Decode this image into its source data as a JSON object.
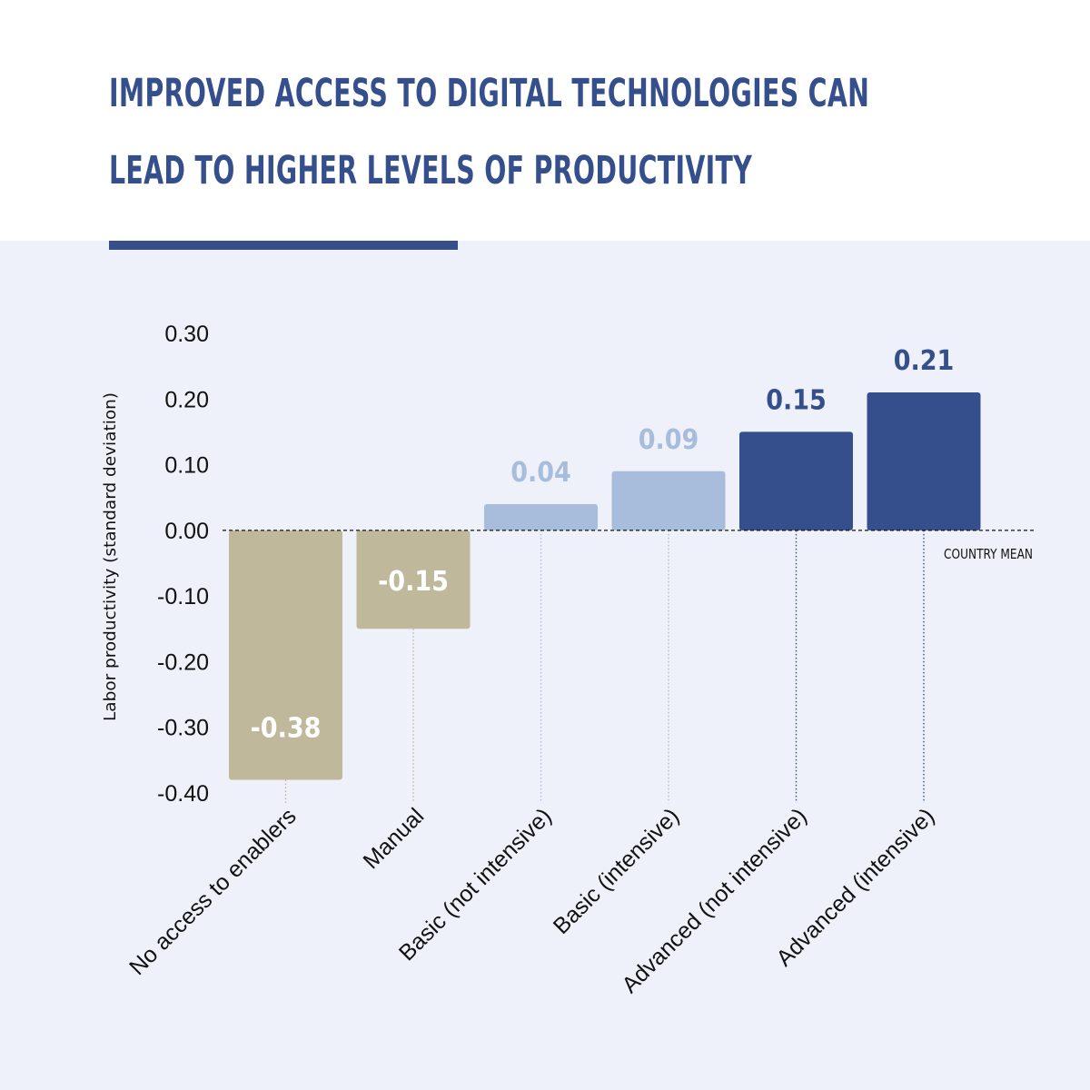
{
  "header": {
    "title_line1": "IMPROVED ACCESS TO DIGITAL TECHNOLOGIES CAN",
    "title_line2": "LEAD TO HIGHER LEVELS OF PRODUCTIVITY"
  },
  "colors": {
    "title": "#354e8c",
    "negative": "#bfb89b",
    "basic": "#a8bddb",
    "advanced": "#354e8c",
    "background": "#eef1fa"
  },
  "chart_data": {
    "type": "bar",
    "ylabel": "Labor productivity (standard deviation)",
    "ylim": [
      -0.4,
      0.3
    ],
    "yticks": [
      "0.30",
      "0.20",
      "0.10",
      "0.00",
      "-0.10",
      "-0.20",
      "-0.30",
      "-0.40"
    ],
    "ytick_values": [
      0.3,
      0.2,
      0.1,
      0.0,
      -0.1,
      -0.2,
      -0.3,
      -0.4
    ],
    "categories": [
      "No access to enablers",
      "Manual",
      "Basic (not intensive)",
      "Basic (intensive)",
      "Advanced (not intensive)",
      "Advanced (intensive)"
    ],
    "values": [
      -0.38,
      -0.15,
      0.04,
      0.09,
      0.15,
      0.21
    ],
    "data_labels": [
      "-0.38",
      "-0.15",
      "0.04",
      "0.09",
      "0.15",
      "0.21"
    ],
    "bar_colors": [
      "#bfb89b",
      "#bfb89b",
      "#a8bddb",
      "#a8bddb",
      "#354e8c",
      "#354e8c"
    ],
    "label_colors": [
      "#ffffff",
      "#ffffff",
      "#a8bddb",
      "#a8bddb",
      "#354e8c",
      "#354e8c"
    ],
    "reference_line": {
      "value": 0.0,
      "label": "COUNTRY MEAN",
      "style": "dashed"
    },
    "grid": false,
    "legend": "none"
  }
}
